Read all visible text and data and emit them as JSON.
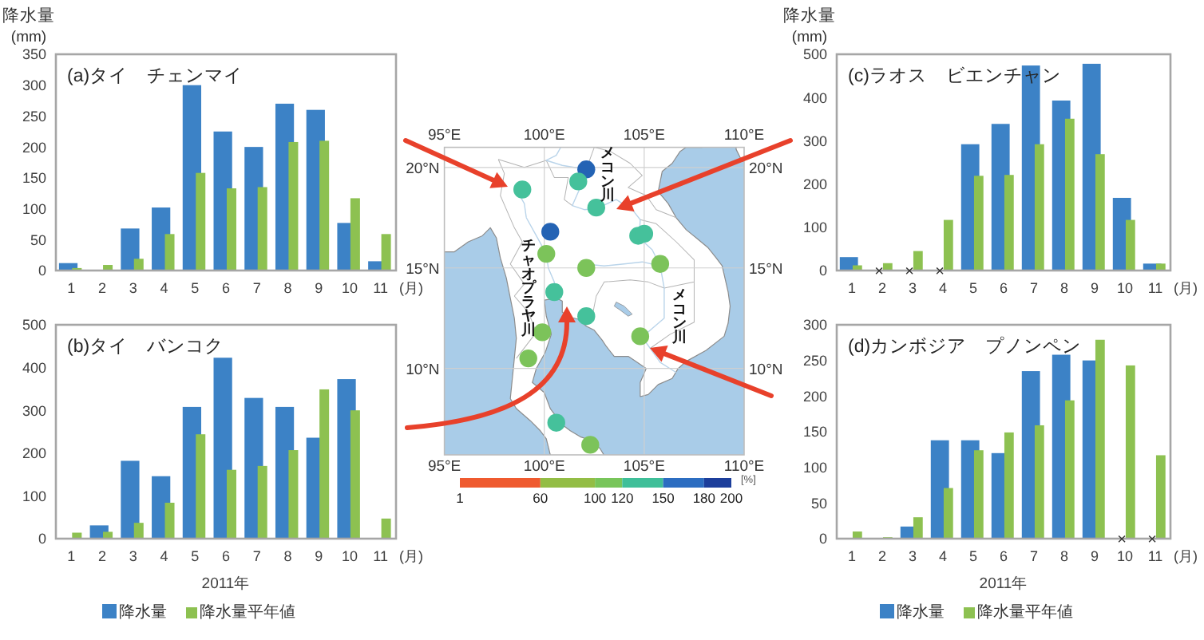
{
  "chart_data": [
    {
      "type": "bar",
      "title": "(a)タイ　チェンマイ",
      "ylabel": "降水量 (mm)",
      "xlabel": "(月)",
      "categories": [
        "1",
        "2",
        "3",
        "4",
        "5",
        "6",
        "7",
        "8",
        "9",
        "10",
        "11"
      ],
      "series": [
        {
          "color": "#3c82c6",
          "values": [
            12,
            0,
            68,
            102,
            300,
            225,
            200,
            270,
            260,
            77,
            15
          ]
        },
        {
          "color": "#8dc151",
          "values": [
            4,
            9,
            19,
            59,
            158,
            133,
            135,
            208,
            210,
            117,
            59
          ]
        }
      ],
      "ylim": [
        0,
        350
      ],
      "yticks": [
        0,
        50,
        100,
        150,
        200,
        250,
        300,
        350
      ]
    },
    {
      "type": "scatter",
      "x": [
        98.9,
        102.1,
        101.7,
        102.6,
        100.3,
        104.7,
        105.0,
        100.1,
        102.1,
        105.8,
        100.5,
        102.1,
        99.9,
        104.8,
        99.2,
        100.6,
        102.3
      ],
      "values": [
        18.9,
        19.9,
        19.3,
        18.0,
        16.8,
        16.6,
        16.7,
        15.7,
        15.0,
        15.2,
        13.8,
        12.6,
        11.8,
        11.6,
        10.5,
        7.3,
        6.2
      ],
      "colors": [
        "#45c19b",
        "#2463b4",
        "#45c19b",
        "#45c19b",
        "#2463b4",
        "#45c19b",
        "#45c19b",
        "#7cc35a",
        "#7cc35a",
        "#7cc35a",
        "#45c19b",
        "#45c19b",
        "#7cc35a",
        "#7cc35a",
        "#7cc35a",
        "#45c19b",
        "#7cc35a"
      ],
      "marker": "circle",
      "grid": true,
      "xlim": [
        95,
        110
      ],
      "xticks": [
        {
          "value": 95,
          "label": "95°E"
        },
        {
          "value": 100,
          "label": "100°E"
        },
        {
          "value": 105,
          "label": "105°E"
        },
        {
          "value": 110,
          "label": "110°E"
        }
      ],
      "x2lim": [
        95,
        110
      ],
      "x2ticks": [
        {
          "value": 95,
          "label": "95°E"
        },
        {
          "value": 100,
          "label": "100°E"
        },
        {
          "value": 105,
          "label": "105°E"
        },
        {
          "value": 110,
          "label": "110°E"
        }
      ],
      "ylim": [
        5.7,
        21
      ],
      "yticks": [
        {
          "value": 10,
          "label": "10°N"
        },
        {
          "value": 15,
          "label": "15°N"
        },
        {
          "value": 20,
          "label": "20°N"
        }
      ],
      "y2lim": [
        5.7,
        21
      ],
      "y2ticks": [
        {
          "value": 10,
          "label": "10°N"
        },
        {
          "value": 15,
          "label": "15°N"
        },
        {
          "value": 20,
          "label": "20°N"
        }
      ],
      "clim": [
        1,
        200
      ],
      "cticks": [
        1,
        60,
        100,
        120,
        150,
        180,
        200
      ],
      "clabel": "[%]",
      "annotations": [
        "メコン川",
        "チャオプラヤ川",
        "メコン川"
      ]
    },
    {
      "type": "bar",
      "title": "(c)ラオス　ビエンチャン",
      "ylabel": "降水量 (mm)",
      "xlabel": "(月)",
      "categories": [
        "1",
        "2",
        "3",
        "4",
        "5",
        "6",
        "7",
        "8",
        "9",
        "10",
        "11"
      ],
      "series": [
        {
          "color": "#3c82c6",
          "values": [
            31,
            null,
            null,
            null,
            292,
            339,
            474,
            393,
            478,
            168,
            16
          ]
        },
        {
          "color": "#8dc151",
          "values": [
            12,
            17,
            45,
            117,
            219,
            221,
            292,
            351,
            269,
            117,
            16
          ]
        }
      ],
      "ylim": [
        0,
        500
      ],
      "yticks": [
        0,
        100,
        200,
        300,
        400,
        500
      ],
      "annotations": [
        {
          "text": "×",
          "x": "2",
          "y": 0
        },
        {
          "text": "×",
          "x": "3",
          "y": 0
        },
        {
          "text": "×",
          "x": "4",
          "y": 0
        }
      ]
    },
    {
      "type": "bar",
      "title": "(b)タイ　バンコク",
      "xlabel": "(月)",
      "categories": [
        "1",
        "2",
        "3",
        "4",
        "5",
        "6",
        "7",
        "8",
        "9",
        "10",
        "11"
      ],
      "series": [
        {
          "name": "降水量",
          "color": "#3c82c6",
          "values": [
            0,
            31,
            182,
            146,
            308,
            423,
            329,
            308,
            236,
            373,
            0
          ]
        },
        {
          "name": "降水量平年値",
          "color": "#8dc151",
          "values": [
            14,
            16,
            37,
            84,
            244,
            161,
            170,
            207,
            349,
            300,
            47
          ]
        }
      ],
      "ylim": [
        0,
        500
      ],
      "yticks": [
        0,
        100,
        200,
        300,
        400,
        500
      ],
      "legend": "bottom",
      "annotations": [
        "2011年"
      ]
    },
    {
      "type": "bar",
      "title": "(d)カンボジア　プノンペン",
      "xlabel": "(月)",
      "categories": [
        "1",
        "2",
        "3",
        "4",
        "5",
        "6",
        "7",
        "8",
        "9",
        "10",
        "11"
      ],
      "series": [
        {
          "name": "降水量",
          "color": "#3c82c6",
          "values": [
            0,
            0,
            17,
            138,
            138,
            120,
            235,
            258,
            250,
            null,
            null
          ]
        },
        {
          "name": "降水量平年値",
          "color": "#8dc151",
          "values": [
            10,
            2,
            30,
            71,
            124,
            149,
            159,
            194,
            279,
            243,
            117
          ]
        }
      ],
      "ylim": [
        0,
        300
      ],
      "yticks": [
        0,
        50,
        100,
        150,
        200,
        250,
        300
      ],
      "legend": "bottom",
      "annotations": [
        "2011年",
        {
          "text": "×",
          "x": "10",
          "y": 0
        },
        {
          "text": "×",
          "x": "11",
          "y": 0
        }
      ]
    }
  ]
}
